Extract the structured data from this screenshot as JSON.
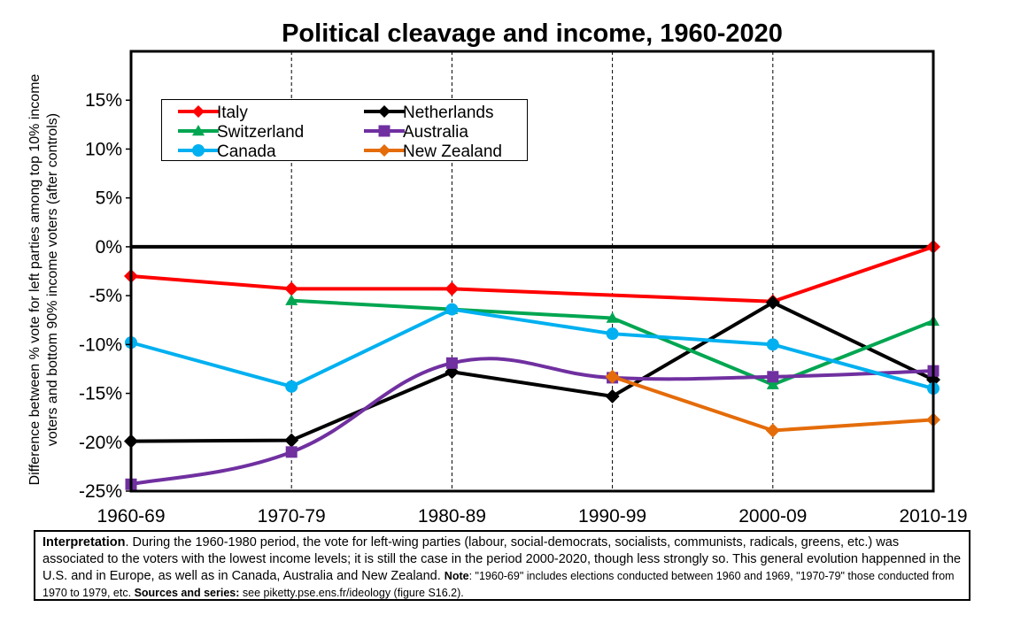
{
  "chart_data": {
    "type": "line",
    "title": "Political cleavage and income, 1960-2020",
    "ylabel_lines": [
      "Difference between % vote for left parties among top 10% income",
      "voters and bottom 90% income voters (after controls)"
    ],
    "categories": [
      "1960-69",
      "1970-79",
      "1980-89",
      "1990-99",
      "2000-09",
      "2010-19"
    ],
    "ylim": [
      -25,
      20
    ],
    "yticks": [
      -25,
      -20,
      -15,
      -10,
      -5,
      0,
      5,
      10,
      15
    ],
    "ytick_labels": [
      "-25%",
      "-20%",
      "-15%",
      "-10%",
      "-5%",
      "0%",
      "5%",
      "10%",
      "15%"
    ],
    "legend_position": "top-left",
    "grid": "vertical dashed",
    "series": [
      {
        "name": "Italy",
        "color": "#ff0000",
        "marker": "diamond",
        "smooth": false,
        "values": [
          -3.0,
          -4.3,
          -4.3,
          null,
          -5.6,
          0.0
        ]
      },
      {
        "name": "Netherlands",
        "color": "#000000",
        "marker": "diamond",
        "smooth": false,
        "values": [
          -19.9,
          -19.8,
          -12.8,
          -15.3,
          -5.7,
          -13.6
        ]
      },
      {
        "name": "Switzerland",
        "color": "#00a651",
        "marker": "triangle",
        "smooth": false,
        "values": [
          null,
          -5.5,
          -6.4,
          -7.3,
          -14.1,
          -7.6
        ]
      },
      {
        "name": "Australia",
        "color": "#7030a0",
        "marker": "square",
        "smooth": true,
        "values": [
          -24.3,
          -21.0,
          -11.9,
          -13.4,
          -13.3,
          -12.7
        ]
      },
      {
        "name": "Canada",
        "color": "#00b0f0",
        "marker": "circle",
        "smooth": false,
        "values": [
          -9.8,
          -14.3,
          -6.4,
          -8.9,
          -10.0,
          -14.5
        ]
      },
      {
        "name": "New Zealand",
        "color": "#e46c0a",
        "marker": "diamond",
        "smooth": false,
        "values": [
          null,
          null,
          null,
          -13.3,
          -18.8,
          -17.7
        ]
      }
    ]
  },
  "note": {
    "p1_bold": "Interpretation",
    "p1": ". During the 1960-1980 period, the vote for left-wing parties (labour, social-democrats, socialists, communists, radicals, greens, etc.) was associated to the voters with the lowest income levels; it is still the case in the period 2000-2020, though less strongly so. This general evolution happenned in the U.S. and in Europe, as well as in Canada, Australia and New Zealand.",
    "note_bold": "Note",
    "note_text": ": \"1960-69\" includes elections conducted between 1960 and 1969, \"1970-79\"  those conducted from 1970 to 1979, etc.",
    "sources_bold": "Sources and series:",
    "sources_text": " see piketty.pse.ens.fr/ideology (figure S16.2)."
  }
}
